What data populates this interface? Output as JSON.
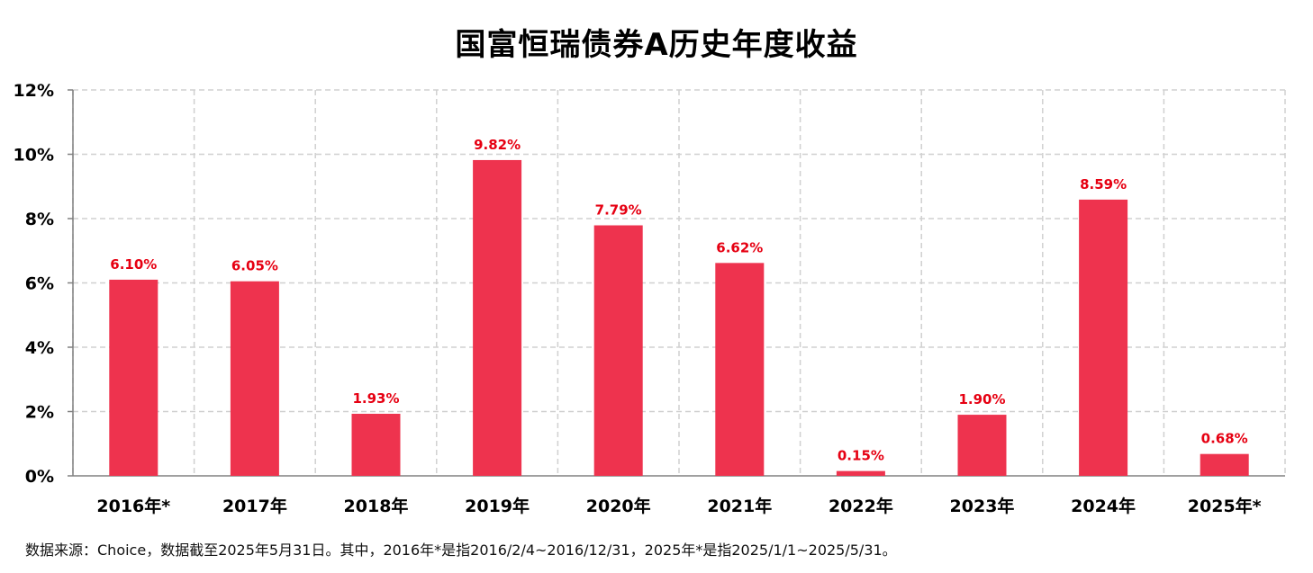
{
  "chart_data": {
    "type": "bar",
    "title": "国富恒瑞债券A历史年度收益",
    "xlabel": "",
    "ylabel": "",
    "categories": [
      "2016年*",
      "2017年",
      "2018年",
      "2019年",
      "2020年",
      "2021年",
      "2022年",
      "2023年",
      "2024年",
      "2025年*"
    ],
    "values": [
      6.1,
      6.05,
      1.93,
      9.82,
      7.79,
      6.62,
      0.15,
      1.9,
      8.59,
      0.68
    ],
    "data_labels": [
      "6.10%",
      "6.05%",
      "1.93%",
      "9.82%",
      "7.79%",
      "6.62%",
      "0.15%",
      "1.90%",
      "8.59%",
      "0.68%"
    ],
    "ylim": [
      0,
      12
    ],
    "yticks": [
      0,
      2,
      4,
      6,
      8,
      10,
      12
    ],
    "ytick_labels": [
      "0%",
      "2%",
      "4%",
      "6%",
      "8%",
      "10%",
      "12%"
    ],
    "grid": true,
    "bar_color": "#EE334E",
    "label_color": "#E60012"
  },
  "footnote": "数据来源：Choice，数据截至2025年5月31日。其中，2016年*是指2016/2/4~2016/12/31，2025年*是指2025/1/1~2025/5/31。"
}
